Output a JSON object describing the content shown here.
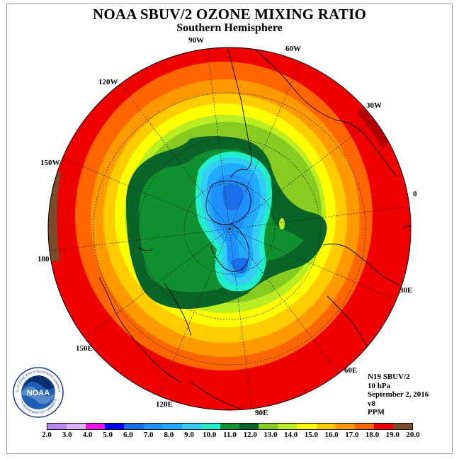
{
  "title": "NOAA SBUV/2 OZONE MIXING RATIO",
  "subtitle": "Southern Hemisphere",
  "longitude_labels": [
    "90W",
    "60W",
    "30W",
    "0",
    "30E",
    "60E",
    "90E",
    "120E",
    "150E",
    "180",
    "150W",
    "120W"
  ],
  "info": {
    "satellite": "N19 SBUV/2",
    "level": "10 hPa",
    "date": "September 2, 2016",
    "version": "v8",
    "units": "PPM"
  },
  "colorbar": {
    "ticks": [
      "2.0",
      "3.0",
      "4.0",
      "5.0",
      "6.0",
      "7.0",
      "8.0",
      "9.0",
      "10.0",
      "11.0",
      "12.0",
      "13.0",
      "14.0",
      "15.0",
      "16.0",
      "17.0",
      "18.0",
      "19.0",
      "20.0"
    ],
    "colors": [
      "#b889f2",
      "#dcb6f7",
      "#ee11ee",
      "#0000ee",
      "#1a6fe8",
      "#1e90ff",
      "#22aaff",
      "#33ccf5",
      "#22eecc",
      "#109030",
      "#0a6428",
      "#88cc22",
      "#bbee22",
      "#ffff00",
      "#ffcc00",
      "#ff9900",
      "#ff6600",
      "#ee0000",
      "#7a4a2a"
    ]
  },
  "logo": {
    "text": "NOAA",
    "ring_text": "NATIONAL OCEANIC AND ATMOSPHERIC ADMINISTRATION",
    "ring_text_bottom": "U.S. DEPARTMENT OF COMMERCE"
  },
  "icons": {
    "agency_logo": "noaa-logo-icon"
  }
}
